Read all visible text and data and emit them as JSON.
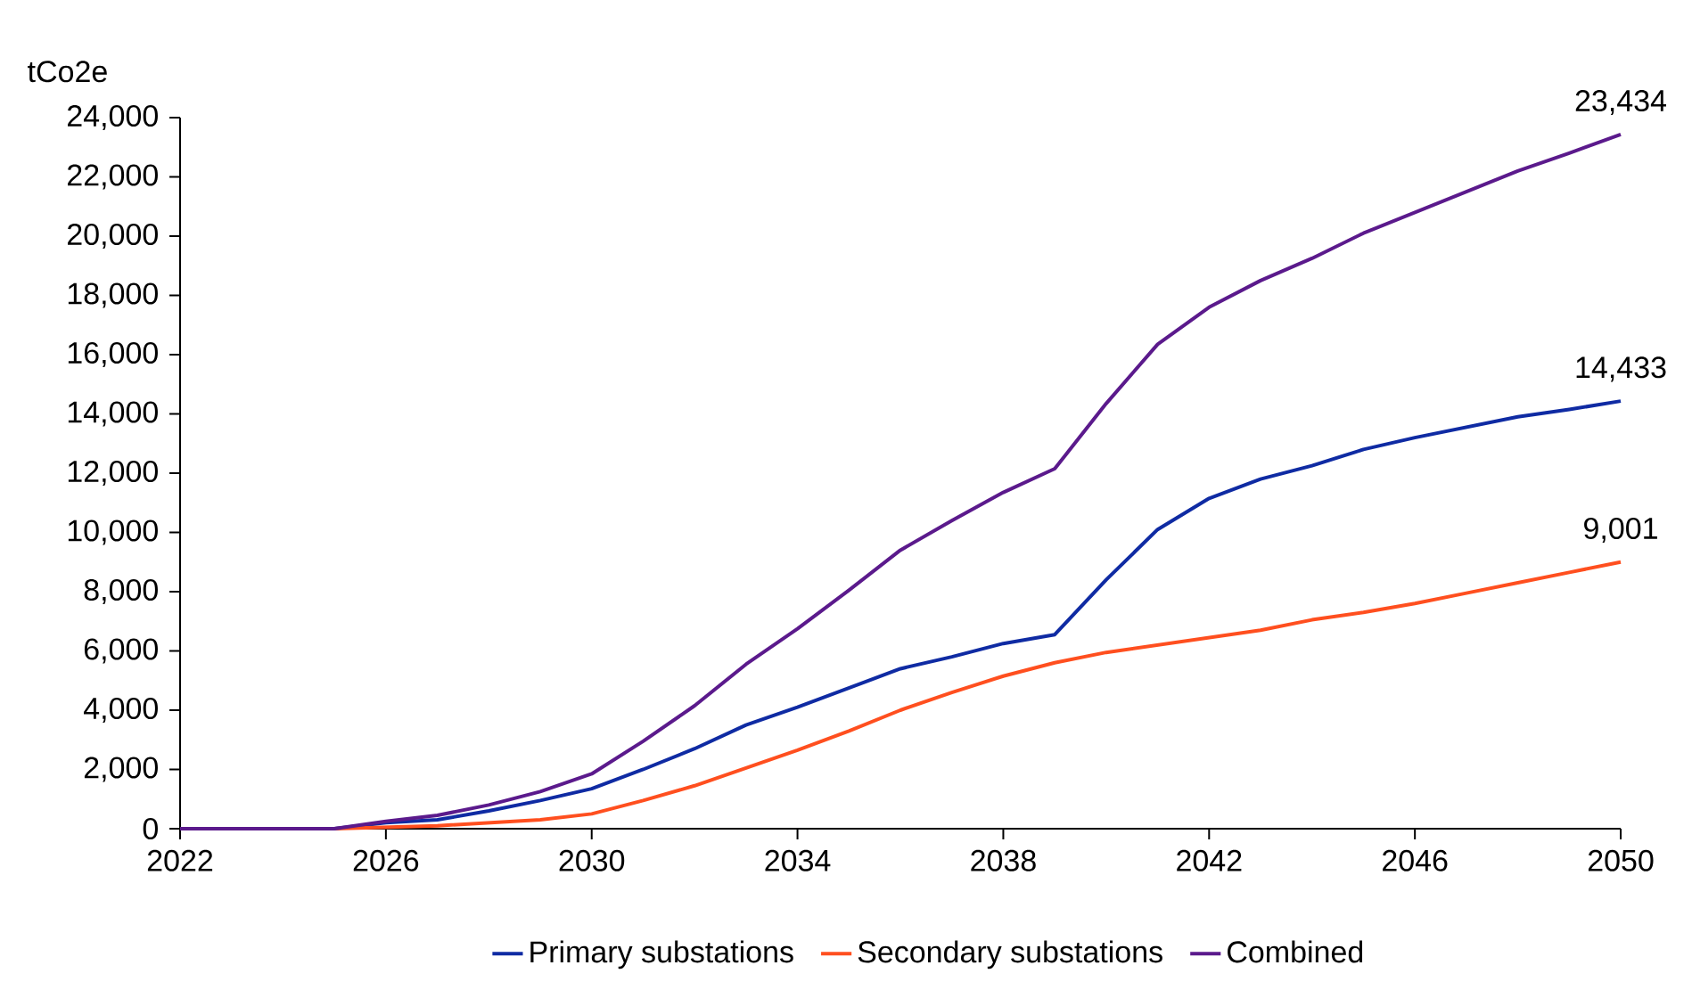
{
  "chart_data": {
    "type": "line",
    "ylabel": "tCo2e",
    "x": [
      2022,
      2023,
      2024,
      2025,
      2026,
      2027,
      2028,
      2029,
      2030,
      2031,
      2032,
      2033,
      2034,
      2035,
      2036,
      2037,
      2038,
      2039,
      2040,
      2041,
      2042,
      2043,
      2044,
      2045,
      2046,
      2047,
      2048,
      2049,
      2050
    ],
    "series": [
      {
        "name": "Primary substations",
        "color": "#0f2ba3",
        "values": [
          null,
          null,
          null,
          0,
          200,
          300,
          600,
          950,
          1350,
          2000,
          2700,
          3500,
          4100,
          4750,
          5400,
          5800,
          6250,
          6550,
          8400,
          10100,
          11150,
          11800,
          12250,
          12800,
          13200,
          13550,
          13900,
          14150,
          14433
        ],
        "value_labels": [
          null,
          null,
          null,
          null,
          null,
          null,
          null,
          null,
          null,
          null,
          null,
          null,
          null,
          null,
          null,
          null,
          null,
          null,
          null,
          null,
          null,
          null,
          null,
          null,
          null,
          null,
          null,
          null,
          "14,433"
        ]
      },
      {
        "name": "Secondary substations",
        "color": "#ff4f1f",
        "values": [
          null,
          null,
          null,
          0,
          50,
          100,
          200,
          300,
          500,
          950,
          1450,
          2050,
          2650,
          3300,
          4000,
          4600,
          5150,
          5600,
          5950,
          6200,
          6450,
          6700,
          7050,
          7300,
          7600,
          7950,
          8300,
          8650,
          9001
        ],
        "value_labels": [
          null,
          null,
          null,
          null,
          null,
          null,
          null,
          null,
          null,
          null,
          null,
          null,
          null,
          null,
          null,
          null,
          null,
          null,
          null,
          null,
          null,
          null,
          null,
          null,
          null,
          null,
          null,
          null,
          "9,001"
        ]
      },
      {
        "name": "Combined",
        "color": "#5b1a8c",
        "values": [
          0,
          0,
          0,
          0,
          250,
          450,
          800,
          1250,
          1850,
          2950,
          4150,
          5550,
          6750,
          8050,
          9400,
          10400,
          11350,
          12150,
          14350,
          16350,
          17600,
          18500,
          19250,
          20100,
          20800,
          21500,
          22200,
          22800,
          23434
        ],
        "value_labels": [
          null,
          null,
          null,
          null,
          null,
          null,
          null,
          null,
          null,
          null,
          null,
          null,
          null,
          null,
          null,
          null,
          null,
          null,
          null,
          null,
          null,
          null,
          null,
          null,
          null,
          null,
          null,
          null,
          "23,434"
        ]
      }
    ],
    "xlim": [
      2022,
      2050
    ],
    "xticks": [
      2022,
      2026,
      2030,
      2034,
      2038,
      2042,
      2046,
      2050
    ],
    "ylim": [
      0,
      24000
    ],
    "yticks": [
      {
        "value": 0,
        "label": "0"
      },
      {
        "value": 2000,
        "label": "2,000"
      },
      {
        "value": 4000,
        "label": "4,000"
      },
      {
        "value": 6000,
        "label": "6,000"
      },
      {
        "value": 8000,
        "label": "8,000"
      },
      {
        "value": 10000,
        "label": "10,000"
      },
      {
        "value": 12000,
        "label": "12,000"
      },
      {
        "value": 14000,
        "label": "14,000"
      },
      {
        "value": 16000,
        "label": "16,000"
      },
      {
        "value": 18000,
        "label": "18,000"
      },
      {
        "value": 20000,
        "label": "20,000"
      },
      {
        "value": 22000,
        "label": "22,000"
      },
      {
        "value": 24000,
        "label": "24,000"
      }
    ],
    "legend": "bottom",
    "marker": "none",
    "line_style": "solid"
  }
}
